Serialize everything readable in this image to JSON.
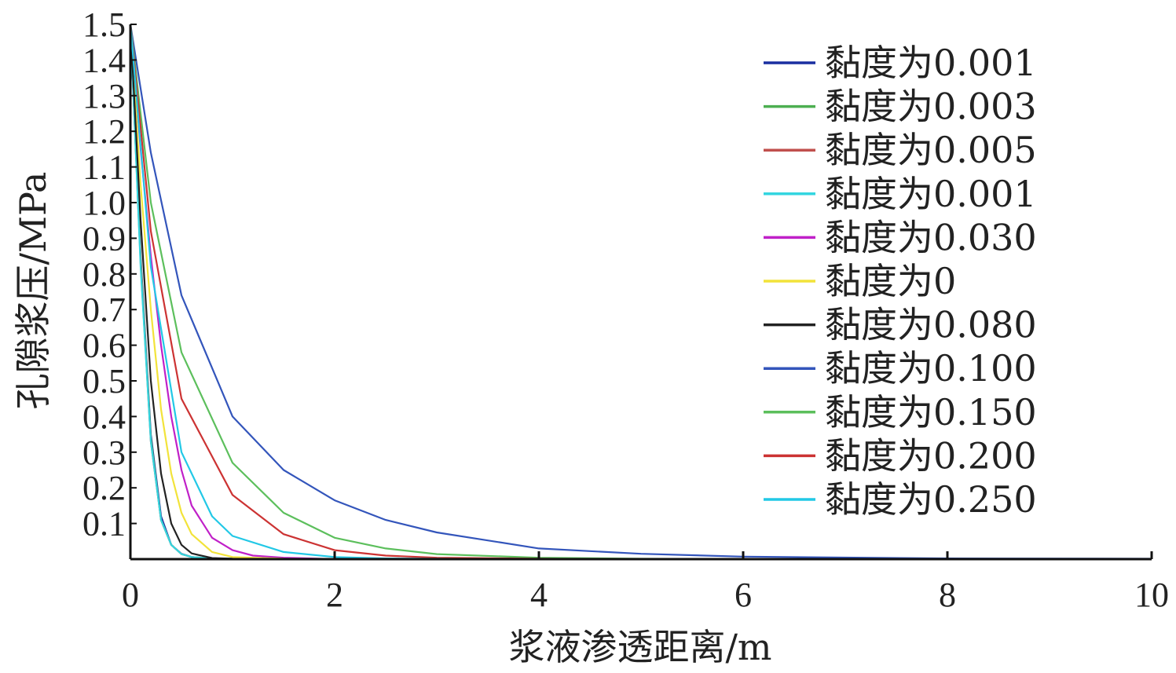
{
  "chart_data": {
    "type": "line",
    "title": "",
    "xlabel": "浆液渗透距离/m",
    "ylabel": "孔隙浆压/MPa",
    "xlim": [
      0,
      10
    ],
    "ylim": [
      0,
      1.5
    ],
    "x_ticks": [
      "0",
      "2",
      "4",
      "6",
      "8",
      "10"
    ],
    "y_ticks": [
      "0.1",
      "0.2",
      "0.3",
      "0.4",
      "0.5",
      "0.6",
      "0.7",
      "0.8",
      "0.9",
      "1.0",
      "1.1",
      "1.2",
      "1.3",
      "1.4",
      "1.5"
    ],
    "grid": false,
    "legend_position": "top-right",
    "series": [
      {
        "name": "黏度为0.001",
        "color": "#1a2fa0",
        "x": [
          0,
          0.1,
          0.2,
          0.3,
          0.4,
          0.5,
          0.6,
          0.8,
          1.0,
          2.0,
          10
        ],
        "values": [
          1.5,
          0.85,
          0.35,
          0.12,
          0.04,
          0.015,
          0.006,
          0.002,
          0.001,
          0,
          0
        ]
      },
      {
        "name": "黏度为0.003",
        "color": "#4caf50",
        "x": [
          0,
          0.1,
          0.2,
          0.3,
          0.4,
          0.5,
          0.6,
          0.8,
          1.0,
          2.0,
          10
        ],
        "values": [
          1.5,
          0.84,
          0.34,
          0.11,
          0.04,
          0.014,
          0.006,
          0.002,
          0.001,
          0,
          0
        ]
      },
      {
        "name": "黏度为0.005",
        "color": "#c0504d",
        "x": [
          0,
          0.1,
          0.2,
          0.3,
          0.4,
          0.5,
          0.6,
          0.8,
          1.0,
          2.0,
          10
        ],
        "values": [
          1.5,
          0.83,
          0.33,
          0.11,
          0.04,
          0.014,
          0.006,
          0.002,
          0.001,
          0,
          0
        ]
      },
      {
        "name": "黏度为0.001",
        "color": "#33d6e0",
        "x": [
          0,
          0.1,
          0.2,
          0.3,
          0.4,
          0.5,
          0.6,
          0.8,
          1.0,
          2.0,
          10
        ],
        "values": [
          1.5,
          0.82,
          0.33,
          0.11,
          0.04,
          0.014,
          0.006,
          0.002,
          0.001,
          0,
          0
        ]
      },
      {
        "name": "黏度为0.030",
        "color": "#c020c8",
        "x": [
          0,
          0.1,
          0.2,
          0.3,
          0.4,
          0.5,
          0.6,
          0.8,
          1.0,
          1.2,
          1.5,
          2.0,
          10
        ],
        "values": [
          1.5,
          1.15,
          0.85,
          0.6,
          0.4,
          0.25,
          0.15,
          0.06,
          0.025,
          0.01,
          0.004,
          0,
          0
        ]
      },
      {
        "name": "黏度为0",
        "color": "#f2e33a",
        "x": [
          0,
          0.1,
          0.2,
          0.3,
          0.4,
          0.5,
          0.6,
          0.8,
          1.0,
          1.5,
          2.0,
          10
        ],
        "values": [
          1.5,
          1.05,
          0.7,
          0.42,
          0.24,
          0.13,
          0.07,
          0.02,
          0.006,
          0.001,
          0,
          0
        ]
      },
      {
        "name": "黏度为0.080",
        "color": "#222222",
        "x": [
          0,
          0.1,
          0.2,
          0.3,
          0.4,
          0.5,
          0.6,
          0.8,
          1.0,
          2.0,
          10
        ],
        "values": [
          1.5,
          0.95,
          0.5,
          0.24,
          0.1,
          0.04,
          0.016,
          0.003,
          0.001,
          0,
          0
        ]
      },
      {
        "name": "黏度为0.100",
        "color": "#3355bb",
        "x": [
          0,
          0.2,
          0.5,
          1.0,
          1.5,
          2.0,
          2.5,
          3.0,
          4.0,
          5.0,
          6.0,
          8.0,
          10.0
        ],
        "values": [
          1.5,
          1.14,
          0.74,
          0.4,
          0.25,
          0.165,
          0.11,
          0.075,
          0.03,
          0.015,
          0.007,
          0.002,
          0.001
        ]
      },
      {
        "name": "黏度为0.150",
        "color": "#5cbf5c",
        "x": [
          0,
          0.2,
          0.5,
          1.0,
          1.5,
          2.0,
          2.5,
          3.0,
          4.0,
          5.0,
          6.0,
          10.0
        ],
        "values": [
          1.5,
          1.0,
          0.58,
          0.27,
          0.13,
          0.06,
          0.03,
          0.014,
          0.004,
          0.001,
          0,
          0
        ]
      },
      {
        "name": "黏度为0.200",
        "color": "#cc3333",
        "x": [
          0,
          0.2,
          0.5,
          1.0,
          1.5,
          2.0,
          2.5,
          3.0,
          4.0,
          5.0,
          10.0
        ],
        "values": [
          1.5,
          0.92,
          0.45,
          0.18,
          0.07,
          0.025,
          0.01,
          0.004,
          0.001,
          0,
          0
        ]
      },
      {
        "name": "黏度为0.250",
        "color": "#22c8e6",
        "x": [
          0,
          0.2,
          0.5,
          0.8,
          1.0,
          1.5,
          2.0,
          2.5,
          3.0,
          4.0,
          10.0
        ],
        "values": [
          1.5,
          0.82,
          0.3,
          0.12,
          0.065,
          0.02,
          0.006,
          0.002,
          0.001,
          0,
          0
        ]
      }
    ]
  }
}
